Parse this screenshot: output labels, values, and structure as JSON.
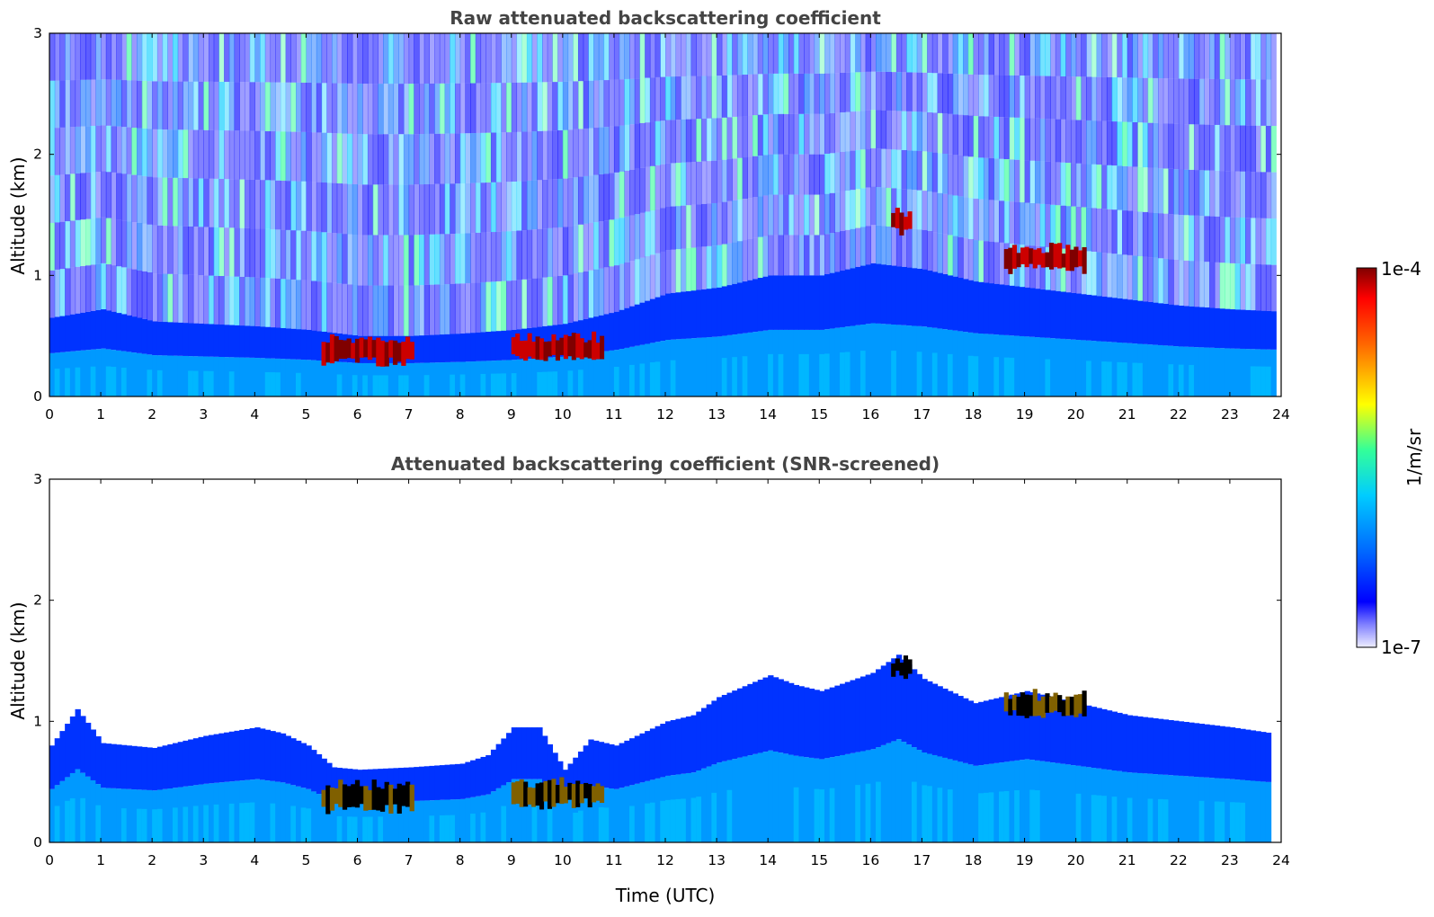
{
  "chart_data": [
    {
      "type": "heatmap",
      "title": "Raw attenuated backscattering coefficient",
      "xlabel": "",
      "ylabel": "Altitude (km)",
      "xlim": [
        0,
        24
      ],
      "ylim": [
        0,
        3
      ],
      "x_ticks": [
        "0",
        "1",
        "2",
        "3",
        "4",
        "5",
        "6",
        "7",
        "8",
        "9",
        "10",
        "11",
        "12",
        "13",
        "14",
        "15",
        "16",
        "17",
        "18",
        "19",
        "20",
        "21",
        "22",
        "23",
        "24"
      ],
      "y_ticks": [
        "0",
        "1",
        "2",
        "3"
      ],
      "boundary_layer_top_km": [
        [
          0,
          0.65
        ],
        [
          1,
          0.72
        ],
        [
          2,
          0.62
        ],
        [
          3,
          0.6
        ],
        [
          4,
          0.58
        ],
        [
          5,
          0.55
        ],
        [
          6,
          0.5
        ],
        [
          7,
          0.5
        ],
        [
          8,
          0.52
        ],
        [
          9,
          0.55
        ],
        [
          10,
          0.6
        ],
        [
          11,
          0.7
        ],
        [
          12,
          0.85
        ],
        [
          13,
          0.9
        ],
        [
          14,
          1.0
        ],
        [
          15,
          1.0
        ],
        [
          16,
          1.1
        ],
        [
          17,
          1.05
        ],
        [
          18,
          0.95
        ],
        [
          19,
          0.9
        ],
        [
          20,
          0.85
        ],
        [
          21,
          0.8
        ],
        [
          22,
          0.75
        ],
        [
          23,
          0.72
        ],
        [
          24,
          0.7
        ]
      ],
      "noise_level": "high",
      "strong_features": [
        {
          "t0": 5.3,
          "t1": 7.1,
          "z0": 0.25,
          "z1": 0.5
        },
        {
          "t0": 9.0,
          "t1": 10.8,
          "z0": 0.28,
          "z1": 0.52
        },
        {
          "t0": 16.4,
          "t1": 16.8,
          "z0": 1.35,
          "z1": 1.55
        },
        {
          "t0": 18.6,
          "t1": 20.2,
          "z0": 1.02,
          "z1": 1.25
        }
      ]
    },
    {
      "type": "heatmap",
      "title": "Attenuated backscattering coefficient (SNR-screened)",
      "xlabel": "Time (UTC)",
      "ylabel": "Altitude (km)",
      "xlim": [
        0,
        24
      ],
      "ylim": [
        0,
        3
      ],
      "x_ticks": [
        "0",
        "1",
        "2",
        "3",
        "4",
        "5",
        "6",
        "7",
        "8",
        "9",
        "10",
        "11",
        "12",
        "13",
        "14",
        "15",
        "16",
        "17",
        "18",
        "19",
        "20",
        "21",
        "22",
        "23",
        "24"
      ],
      "y_ticks": [
        "0",
        "1",
        "2",
        "3"
      ],
      "boundary_layer_top_km": [
        [
          0,
          0.8
        ],
        [
          0.5,
          1.1
        ],
        [
          1,
          0.82
        ],
        [
          2,
          0.78
        ],
        [
          3,
          0.88
        ],
        [
          4,
          0.95
        ],
        [
          4.5,
          0.9
        ],
        [
          5,
          0.8
        ],
        [
          5.5,
          0.62
        ],
        [
          6,
          0.6
        ],
        [
          7,
          0.62
        ],
        [
          8,
          0.65
        ],
        [
          8.5,
          0.72
        ],
        [
          9,
          0.95
        ],
        [
          9.5,
          0.95
        ],
        [
          10,
          0.6
        ],
        [
          10.5,
          0.85
        ],
        [
          11,
          0.8
        ],
        [
          12,
          1.0
        ],
        [
          12.5,
          1.05
        ],
        [
          13,
          1.2
        ],
        [
          14,
          1.38
        ],
        [
          14.5,
          1.3
        ],
        [
          15,
          1.25
        ],
        [
          16,
          1.4
        ],
        [
          16.5,
          1.55
        ],
        [
          17,
          1.35
        ],
        [
          18,
          1.15
        ],
        [
          19,
          1.25
        ],
        [
          20,
          1.15
        ],
        [
          21,
          1.05
        ],
        [
          22,
          1.0
        ],
        [
          23,
          0.95
        ],
        [
          23.8,
          0.9
        ]
      ],
      "noise_level": "none",
      "strong_features": [
        {
          "t0": 5.3,
          "t1": 7.1,
          "z0": 0.25,
          "z1": 0.5
        },
        {
          "t0": 9.0,
          "t1": 10.8,
          "z0": 0.28,
          "z1": 0.52
        },
        {
          "t0": 16.4,
          "t1": 16.8,
          "z0": 1.35,
          "z1": 1.55
        },
        {
          "t0": 18.6,
          "t1": 20.2,
          "z0": 1.02,
          "z1": 1.25
        }
      ]
    }
  ],
  "colorbar": {
    "label": "1/m/sr",
    "max_label": "1e-4",
    "min_label": "1e-7",
    "colors": [
      "#eeeeff",
      "#b8b8f0",
      "#8080ff",
      "#0000ff",
      "#0033ff",
      "#0066ff",
      "#0099ff",
      "#00ccff",
      "#00e0e0",
      "#33ff99",
      "#99ff33",
      "#ffff00",
      "#ffcc00",
      "#ff6600",
      "#ff0000",
      "#cc0000",
      "#800000"
    ]
  }
}
